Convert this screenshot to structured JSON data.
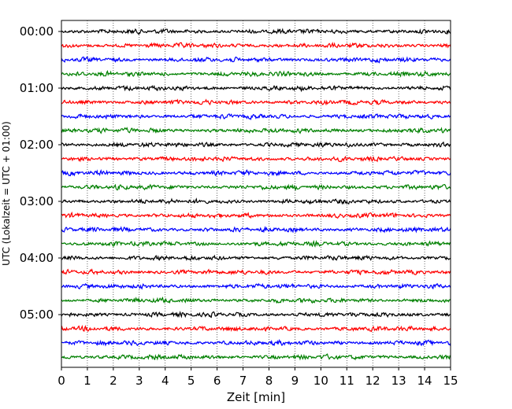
{
  "chart_data": {
    "type": "line",
    "title": "",
    "xlabel": "Zeit  [min]",
    "ylabel": "UTC (Lokalzeit = UTC + 01:00)",
    "xlim": [
      0,
      15
    ],
    "x_ticks": [
      0,
      1,
      2,
      3,
      4,
      5,
      6,
      7,
      8,
      9,
      10,
      11,
      12,
      13,
      14,
      15
    ],
    "y_tick_labels": [
      "00:00",
      "01:00",
      "02:00",
      "03:00",
      "04:00",
      "05:00"
    ],
    "trace_minutes_per_line": 15,
    "trace_count": 24,
    "trace_start_times": [
      "00:00",
      "00:15",
      "00:30",
      "00:45",
      "01:00",
      "01:15",
      "01:30",
      "01:45",
      "02:00",
      "02:15",
      "02:30",
      "02:45",
      "03:00",
      "03:15",
      "03:30",
      "03:45",
      "04:00",
      "04:15",
      "04:30",
      "04:45",
      "05:00",
      "05:15",
      "05:30",
      "05:45"
    ],
    "trace_colors": [
      "#000000",
      "#ff0000",
      "#0000ff",
      "#008000"
    ],
    "grid": {
      "x": "dotted",
      "y": "none"
    },
    "y_inverted": true
  }
}
